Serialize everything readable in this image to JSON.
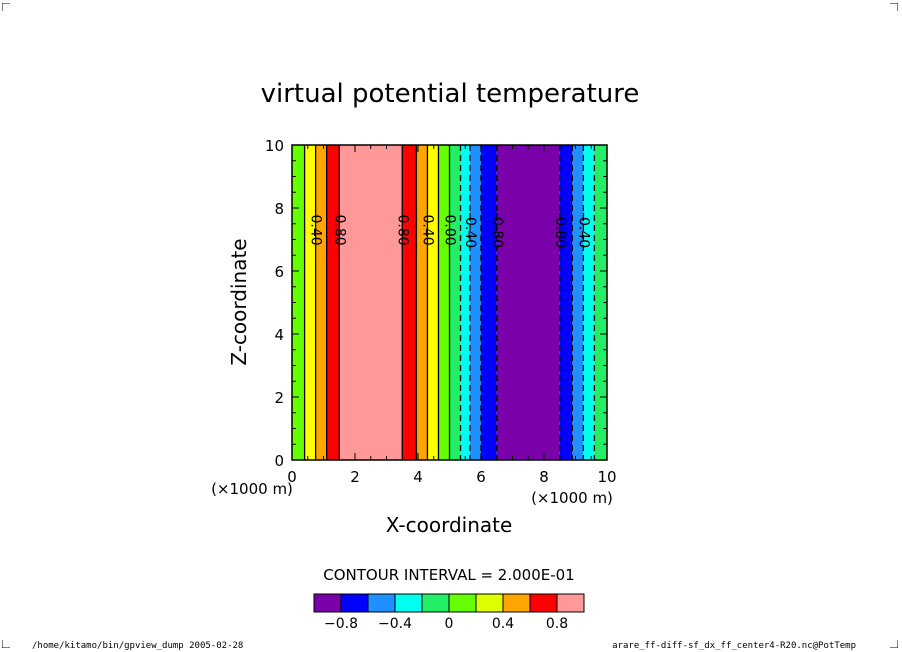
{
  "chart_data": {
    "type": "filled-contour",
    "title": "virtual potential temperature",
    "xlabel": "X-coordinate",
    "ylabel": "Z-coordinate",
    "x_unit_label": "(×1000 m)",
    "z_unit_label": "(×1000 m)",
    "xlim": [
      0,
      10
    ],
    "ylim": [
      0,
      10
    ],
    "x_ticks": [
      0,
      2,
      4,
      6,
      8,
      10
    ],
    "y_ticks": [
      0,
      2,
      4,
      6,
      8,
      10
    ],
    "x_tick_labels": [
      "0",
      "2",
      "4",
      "6",
      "8",
      "10"
    ],
    "y_tick_labels": [
      "0",
      "2",
      "4",
      "6",
      "8",
      "10"
    ],
    "contour_interval": 0.2,
    "bands": [
      {
        "x0": 0.0,
        "x1": 0.4,
        "color": "#66ff00"
      },
      {
        "x0": 0.4,
        "x1": 0.75,
        "color": "#ffff00"
      },
      {
        "x0": 0.75,
        "x1": 1.1,
        "color": "#ffa500"
      },
      {
        "x0": 1.1,
        "x1": 1.5,
        "color": "#ff0000"
      },
      {
        "x0": 1.5,
        "x1": 3.5,
        "color": "#ff9999"
      },
      {
        "x0": 3.5,
        "x1": 3.95,
        "color": "#ff0000"
      },
      {
        "x0": 3.95,
        "x1": 4.3,
        "color": "#ffa500"
      },
      {
        "x0": 4.3,
        "x1": 4.65,
        "color": "#ffff00"
      },
      {
        "x0": 4.65,
        "x1": 5.0,
        "color": "#66ff00"
      },
      {
        "x0": 5.0,
        "x1": 5.35,
        "color": "#22ee66"
      },
      {
        "x0": 5.35,
        "x1": 5.65,
        "color": "#00ffee"
      },
      {
        "x0": 5.65,
        "x1": 6.0,
        "color": "#1e90ff"
      },
      {
        "x0": 6.0,
        "x1": 6.5,
        "color": "#0000ff"
      },
      {
        "x0": 6.5,
        "x1": 8.5,
        "color": "#7a00aa"
      },
      {
        "x0": 8.5,
        "x1": 8.9,
        "color": "#0000ff"
      },
      {
        "x0": 8.9,
        "x1": 9.25,
        "color": "#1e90ff"
      },
      {
        "x0": 9.25,
        "x1": 9.6,
        "color": "#00ffee"
      },
      {
        "x0": 9.6,
        "x1": 10.0,
        "color": "#22ee66"
      }
    ],
    "contour_lines": [
      {
        "x": 0.4,
        "level": 0.2,
        "dashed": false
      },
      {
        "x": 0.75,
        "level": 0.4,
        "dashed": false
      },
      {
        "x": 1.1,
        "level": 0.6,
        "dashed": false
      },
      {
        "x": 1.5,
        "level": 0.8,
        "dashed": false
      },
      {
        "x": 3.5,
        "level": 0.8,
        "dashed": false
      },
      {
        "x": 3.95,
        "level": 0.6,
        "dashed": false
      },
      {
        "x": 4.3,
        "level": 0.4,
        "dashed": false
      },
      {
        "x": 4.65,
        "level": 0.2,
        "dashed": false
      },
      {
        "x": 5.0,
        "level": 0.0,
        "dashed": false
      },
      {
        "x": 5.35,
        "level": -0.2,
        "dashed": true
      },
      {
        "x": 5.65,
        "level": -0.4,
        "dashed": true
      },
      {
        "x": 6.0,
        "level": -0.6,
        "dashed": true
      },
      {
        "x": 6.5,
        "level": -0.8,
        "dashed": true
      },
      {
        "x": 8.5,
        "level": -0.8,
        "dashed": true
      },
      {
        "x": 8.9,
        "level": -0.6,
        "dashed": true
      },
      {
        "x": 9.25,
        "level": -0.4,
        "dashed": true
      },
      {
        "x": 9.6,
        "level": -0.2,
        "dashed": true
      }
    ],
    "contour_labels": [
      {
        "x": 0.75,
        "text": "0.40"
      },
      {
        "x": 1.5,
        "text": "0.80"
      },
      {
        "x": 3.5,
        "text": "0.80"
      },
      {
        "x": 4.3,
        "text": "0.40"
      },
      {
        "x": 5.0,
        "text": "0.00"
      },
      {
        "x": 5.65,
        "text": "-0.40"
      },
      {
        "x": 6.5,
        "text": "-0.80"
      },
      {
        "x": 8.5,
        "text": "-0.80"
      },
      {
        "x": 9.25,
        "text": "-0.40"
      }
    ],
    "contour_interval_text": "CONTOUR INTERVAL = 2.000E-01",
    "colorbar": {
      "colors": [
        "#7a00aa",
        "#0000ff",
        "#1e90ff",
        "#00ffee",
        "#22ee66",
        "#66ff00",
        "#ddff00",
        "#ffa500",
        "#ff0000",
        "#ff9999"
      ],
      "levels": [
        -1.0,
        -0.8,
        -0.6,
        -0.4,
        -0.2,
        0.0,
        0.2,
        0.4,
        0.6,
        0.8,
        1.0
      ],
      "tick_values": [
        -0.8,
        -0.4,
        0.0,
        0.4,
        0.8
      ],
      "tick_labels": [
        "−0.8",
        "−0.4",
        "0",
        "0.4",
        "0.8"
      ]
    }
  },
  "footer": {
    "left": "/home/kitamo/bin/gpview_dump  2005-02-28",
    "right": "arare_ff-diff-sf_dx_ff_center4-R20.nc@PotTemp"
  }
}
